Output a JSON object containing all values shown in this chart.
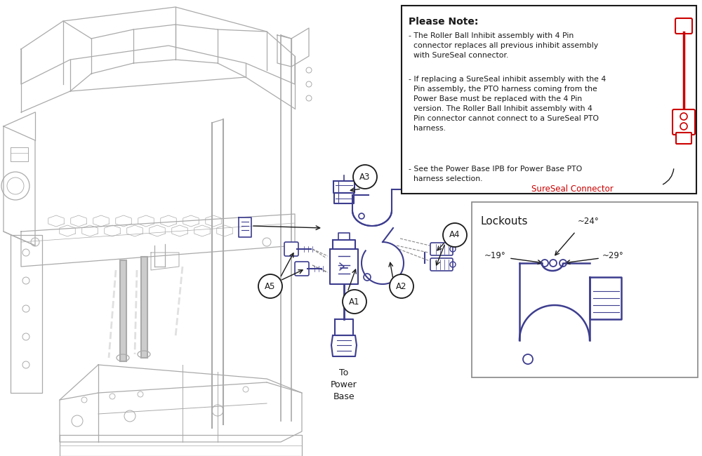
{
  "bg_color": "#ffffff",
  "blue": "#3d3d8f",
  "dark_blue": "#2a2a6e",
  "red": "#cc0000",
  "gray": "#aaaaaa",
  "dark_gray": "#888888",
  "light_gray": "#cccccc",
  "black": "#1a1a1a",
  "note_title": "Please Note:",
  "bullet1": "- The Roller Ball Inhibit assembly with 4 Pin\n  connector replaces all previous inhibit assembly\n  with SureSeal connector.",
  "bullet2": "- If replacing a SureSeal inhibit assembly with the 4\n  Pin assembly, the PTO harness coming from the\n  Power Base must be replaced with the 4 Pin\n  version. The Roller Ball Inhibit assembly with 4\n  Pin connector cannot connect to a SureSeal PTO\n  harness.",
  "bullet3": "- See the Power Base IPB for Power Base PTO\n  harness selection.",
  "sureseal_label": "SureSeal Connector",
  "lockouts_title": "Lockouts",
  "to_power_base": "To\nPower\nBase",
  "angle_19": "~19°",
  "angle_24": "~24°",
  "angle_29": "~29°"
}
